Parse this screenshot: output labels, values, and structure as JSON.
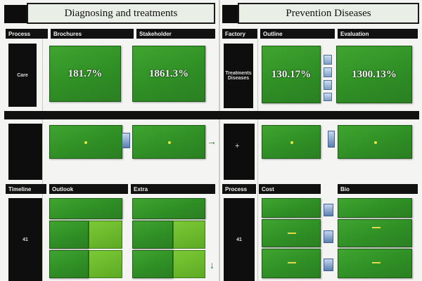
{
  "header": {
    "left_title": "Diagnosing and treatments",
    "right_title": "Prevention Diseases"
  },
  "left_panel": {
    "top_labels": [
      "Process",
      "Brochures",
      "Stakeholder"
    ],
    "side_label": "Care",
    "percent_left": "181.7%",
    "percent_right": "1861.3%",
    "bottom_labels": [
      "Timeline",
      "Outlook",
      "Extra"
    ],
    "bottom_side_label": "41"
  },
  "right_panel": {
    "top_labels": [
      "Factory",
      "Outline",
      "Evaluation"
    ],
    "side_label": "Treatments Diseases",
    "percent_left": "130.17%",
    "percent_right": "1300.13%",
    "bottom_labels": [
      "Process",
      "Cost",
      "Bio"
    ],
    "bottom_side_label": "41"
  },
  "icons": {
    "arrow": "→",
    "arrow_down": "↓",
    "plus": "+"
  },
  "colors": {
    "green": "#2f8f25",
    "lime": "#6cb92d",
    "dark": "#0d0d0d",
    "chip_blue": "#7d9ec4"
  }
}
